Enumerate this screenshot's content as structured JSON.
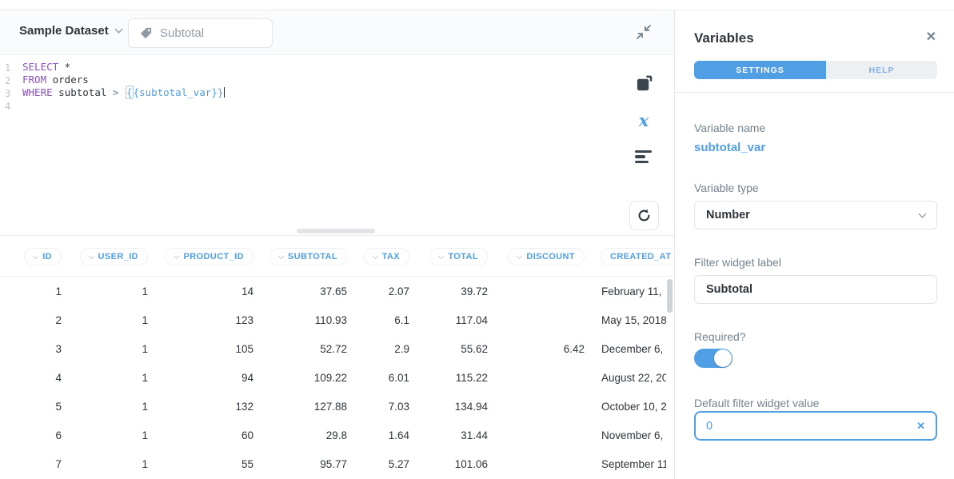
{
  "toolbar": {
    "dataset_label": "Sample Dataset",
    "filter_widget_label": "Subtotal"
  },
  "editor": {
    "line_numbers": [
      "1",
      "2",
      "3",
      "4"
    ],
    "code": {
      "l1_kw": "SELECT",
      "l1_text": " *",
      "l2_kw": "FROM",
      "l2_text": " orders",
      "l3_kw": "WHERE",
      "l3_text": " subtotal ",
      "l3_op": "> ",
      "l3_var_open": "{",
      "l3_var_rest": "{subtotal_var}}"
    }
  },
  "results": {
    "columns": [
      {
        "label": "ID",
        "chevron": true,
        "align": "right"
      },
      {
        "label": "USER_ID",
        "chevron": true,
        "align": "right"
      },
      {
        "label": "PRODUCT_ID",
        "chevron": true,
        "align": "right"
      },
      {
        "label": "SUBTOTAL",
        "chevron": true,
        "align": "right"
      },
      {
        "label": "TAX",
        "chevron": true,
        "align": "right"
      },
      {
        "label": "TOTAL",
        "chevron": true,
        "align": "right"
      },
      {
        "label": "DISCOUNT",
        "chevron": true,
        "align": "right"
      },
      {
        "label": "CREATED_AT",
        "chevron": false,
        "align": "left"
      }
    ],
    "rows": [
      [
        "1",
        "1",
        "14",
        "37.65",
        "2.07",
        "39.72",
        "",
        "February 11,"
      ],
      [
        "2",
        "1",
        "123",
        "110.93",
        "6.1",
        "117.04",
        "",
        "May 15, 2018"
      ],
      [
        "3",
        "1",
        "105",
        "52.72",
        "2.9",
        "55.62",
        "6.42",
        "December 6,"
      ],
      [
        "4",
        "1",
        "94",
        "109.22",
        "6.01",
        "115.22",
        "",
        "August 22, 20"
      ],
      [
        "5",
        "1",
        "132",
        "127.88",
        "7.03",
        "134.94",
        "",
        "October 10, 2"
      ],
      [
        "6",
        "1",
        "60",
        "29.8",
        "1.64",
        "31.44",
        "",
        "November 6,"
      ],
      [
        "7",
        "1",
        "55",
        "95.77",
        "5.27",
        "101.06",
        "",
        "September 11"
      ]
    ]
  },
  "sidebar": {
    "title": "Variables",
    "close_icon": "✕",
    "tabs": [
      {
        "label": "SETTINGS",
        "active": true
      },
      {
        "label": "HELP",
        "active": false
      }
    ],
    "fields": {
      "variable_name_label": "Variable name",
      "variable_name_value": "subtotal_var",
      "variable_type_label": "Variable type",
      "variable_type_value": "Number",
      "filter_widget_label_label": "Filter widget label",
      "filter_widget_label_value": "Subtotal",
      "required_label": "Required?",
      "required_on": true,
      "default_value_label": "Default filter widget value",
      "default_value": "0",
      "clear_icon": "✕"
    }
  },
  "icons": {
    "collapse": "contract-arrows",
    "data_reference": "book",
    "variables": "italic-x",
    "snippets": "text-lines",
    "refresh": "circular-arrow",
    "filter_tag": "tag"
  },
  "colors": {
    "brand_blue": "#509EE3",
    "keyword_purple": "#8C52BD",
    "text_dark": "#2E353B",
    "text_gray": "#74838F",
    "toolbar_bg": "#F9FBFC"
  }
}
